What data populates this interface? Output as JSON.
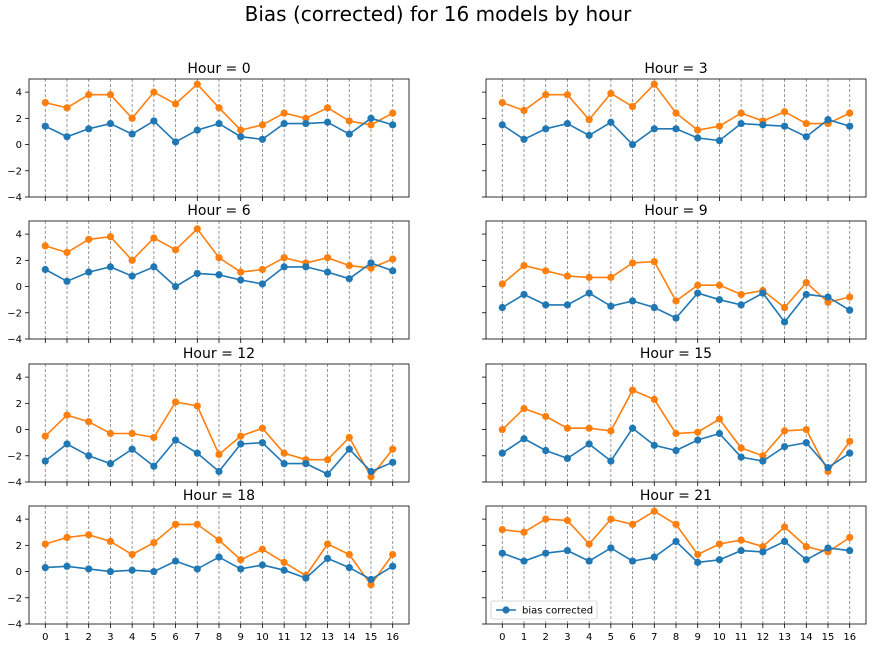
{
  "title": "Bias (corrected) for 16 models by hour",
  "colors": {
    "corrected": "#1f77b4",
    "raw": "#ff7f0e",
    "grid": "#808080",
    "axis": "#000000"
  },
  "chart_data": {
    "type": "line",
    "x": [
      0,
      1,
      2,
      3,
      4,
      5,
      6,
      7,
      8,
      9,
      10,
      11,
      12,
      13,
      14,
      15,
      16
    ],
    "xticks": [
      0,
      1,
      2,
      3,
      4,
      5,
      6,
      7,
      8,
      9,
      10,
      11,
      12,
      13,
      14,
      15,
      16
    ],
    "ylim": [
      -4,
      5
    ],
    "yticks": [
      -4,
      -2,
      0,
      2,
      4
    ],
    "grid": "vertical dashed lines at each x tick",
    "shared_axes": true,
    "legend": {
      "label": "bias corrected",
      "placement": "lower-left",
      "panel_index": 7
    },
    "panels": [
      {
        "title": "Hour = 0",
        "series": [
          {
            "key": "corrected",
            "values": [
              1.4,
              0.6,
              1.2,
              1.6,
              0.8,
              1.8,
              0.2,
              1.1,
              1.6,
              0.6,
              0.4,
              1.6,
              1.6,
              1.7,
              0.8,
              2.0,
              1.5
            ]
          },
          {
            "key": "raw",
            "values": [
              3.2,
              2.8,
              3.8,
              3.8,
              2.0,
              4.0,
              3.1,
              4.6,
              2.8,
              1.1,
              1.5,
              2.4,
              2.0,
              2.8,
              1.8,
              1.5,
              2.4
            ]
          }
        ]
      },
      {
        "title": "Hour = 3",
        "series": [
          {
            "key": "corrected",
            "values": [
              1.5,
              0.4,
              1.2,
              1.6,
              0.7,
              1.7,
              0.0,
              1.2,
              1.2,
              0.5,
              0.3,
              1.6,
              1.5,
              1.4,
              0.6,
              1.9,
              1.4
            ]
          },
          {
            "key": "raw",
            "values": [
              3.2,
              2.6,
              3.8,
              3.8,
              1.9,
              3.9,
              2.9,
              4.6,
              2.4,
              1.1,
              1.4,
              2.4,
              1.8,
              2.5,
              1.6,
              1.6,
              2.4
            ]
          }
        ]
      },
      {
        "title": "Hour = 6",
        "series": [
          {
            "key": "corrected",
            "values": [
              1.3,
              0.4,
              1.1,
              1.5,
              0.8,
              1.5,
              0.0,
              1.0,
              0.9,
              0.5,
              0.2,
              1.5,
              1.5,
              1.1,
              0.6,
              1.8,
              1.2
            ]
          },
          {
            "key": "raw",
            "values": [
              3.1,
              2.6,
              3.6,
              3.8,
              2.0,
              3.7,
              2.8,
              4.4,
              2.2,
              1.1,
              1.3,
              2.2,
              1.8,
              2.2,
              1.6,
              1.4,
              2.1
            ]
          }
        ]
      },
      {
        "title": "Hour = 9",
        "series": [
          {
            "key": "corrected",
            "values": [
              -1.6,
              -0.6,
              -1.4,
              -1.4,
              -0.5,
              -1.5,
              -1.1,
              -1.6,
              -2.4,
              -0.5,
              -1.0,
              -1.4,
              -0.5,
              -2.7,
              -0.6,
              -0.8,
              -1.8
            ]
          },
          {
            "key": "raw",
            "values": [
              0.2,
              1.6,
              1.2,
              0.8,
              0.7,
              0.7,
              1.8,
              1.9,
              -1.1,
              0.1,
              0.1,
              -0.6,
              -0.3,
              -1.6,
              0.3,
              -1.2,
              -0.8
            ]
          }
        ]
      },
      {
        "title": "Hour = 12",
        "series": [
          {
            "key": "corrected",
            "values": [
              -2.4,
              -1.1,
              -2.0,
              -2.6,
              -1.5,
              -2.8,
              -0.8,
              -1.8,
              -3.2,
              -1.1,
              -1.0,
              -2.6,
              -2.6,
              -3.4,
              -1.5,
              -3.2,
              -2.5
            ]
          },
          {
            "key": "raw",
            "values": [
              -0.5,
              1.1,
              0.6,
              -0.3,
              -0.3,
              -0.6,
              2.1,
              1.8,
              -1.9,
              -0.5,
              0.1,
              -1.8,
              -2.3,
              -2.3,
              -0.6,
              -3.6,
              -1.5
            ]
          }
        ]
      },
      {
        "title": "Hour = 15",
        "series": [
          {
            "key": "corrected",
            "values": [
              -1.8,
              -0.7,
              -1.6,
              -2.2,
              -1.1,
              -2.4,
              0.1,
              -1.2,
              -1.6,
              -0.8,
              -0.3,
              -2.1,
              -2.4,
              -1.3,
              -1.0,
              -2.9,
              -1.8
            ]
          },
          {
            "key": "raw",
            "values": [
              0.0,
              1.6,
              1.0,
              0.1,
              0.1,
              -0.1,
              3.0,
              2.3,
              -0.3,
              -0.2,
              0.8,
              -1.4,
              -2.0,
              -0.1,
              0.0,
              -3.2,
              -0.9
            ]
          }
        ]
      },
      {
        "title": "Hour = 18",
        "series": [
          {
            "key": "corrected",
            "values": [
              0.3,
              0.4,
              0.2,
              0.0,
              0.1,
              0.0,
              0.8,
              0.2,
              1.1,
              0.2,
              0.5,
              0.1,
              -0.5,
              1.0,
              0.3,
              -0.6,
              0.4
            ]
          },
          {
            "key": "raw",
            "values": [
              2.1,
              2.6,
              2.8,
              2.3,
              1.3,
              2.2,
              3.6,
              3.6,
              2.4,
              0.9,
              1.7,
              0.7,
              -0.3,
              2.1,
              1.3,
              -1.0,
              1.3
            ]
          }
        ]
      },
      {
        "title": "Hour = 21",
        "series": [
          {
            "key": "corrected",
            "values": [
              1.4,
              0.8,
              1.4,
              1.6,
              0.8,
              1.8,
              0.8,
              1.1,
              2.3,
              0.7,
              0.9,
              1.6,
              1.5,
              2.3,
              0.9,
              1.8,
              1.6
            ]
          },
          {
            "key": "raw",
            "values": [
              3.2,
              3.0,
              4.0,
              3.9,
              2.1,
              4.0,
              3.6,
              4.6,
              3.6,
              1.3,
              2.1,
              2.4,
              1.9,
              3.4,
              1.9,
              1.5,
              2.6
            ]
          }
        ]
      }
    ]
  }
}
